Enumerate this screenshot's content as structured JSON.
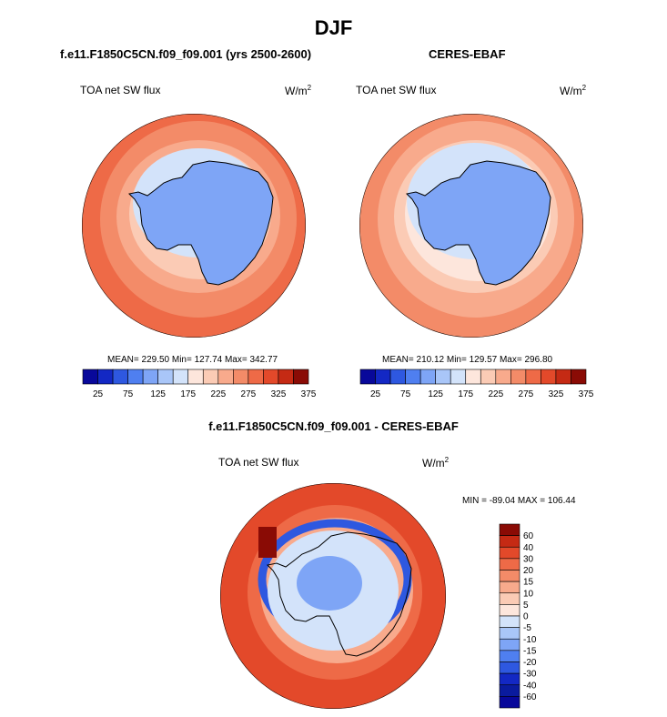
{
  "main_title": "DJF",
  "panels": [
    {
      "title": "f.e11.F1850C5CN.f09_f09.001 (yrs 2500-2600)",
      "variable": "TOA net SW flux",
      "units_base": "W/m",
      "units_exp": "2",
      "stats": "MEAN= 229.50  Min= 127.74  Max= 342.77"
    },
    {
      "title": "CERES-EBAF",
      "variable": "TOA net SW flux",
      "units_base": "W/m",
      "units_exp": "2",
      "stats": "MEAN= 210.12  Min= 129.57  Max= 296.80"
    },
    {
      "title": "f.e11.F1850C5CN.f09_f09.001 - CERES-EBAF",
      "variable": "TOA net SW flux",
      "units_base": "W/m",
      "units_exp": "2",
      "stats": "MIN = -89.04 MAX = 106.44"
    }
  ],
  "abs_colorbar": {
    "labels": [
      "25",
      "75",
      "125",
      "175",
      "225",
      "275",
      "325",
      "375"
    ],
    "colors": [
      "#08089a",
      "#1328c4",
      "#2e58e0",
      "#4f7ff0",
      "#7ea5f6",
      "#a9c6f8",
      "#d3e3fa",
      "#fde6dc",
      "#fbcbb5",
      "#f8aa8c",
      "#f38b68",
      "#ee6a47",
      "#e3492a",
      "#c52a14",
      "#8a0b05"
    ]
  },
  "diff_colorbar": {
    "labels": [
      "60",
      "40",
      "30",
      "20",
      "15",
      "10",
      "5",
      "0",
      "-5",
      "-10",
      "-15",
      "-20",
      "-30",
      "-40",
      "-60"
    ],
    "colors": [
      "#8a0b05",
      "#c52a14",
      "#e3492a",
      "#ee6a47",
      "#f38b68",
      "#f8aa8c",
      "#fbcbb5",
      "#fde6dc",
      "#d3e3fa",
      "#a9c6f8",
      "#7ea5f6",
      "#4f7ff0",
      "#2e58e0",
      "#1328c4",
      "#0a1b9e",
      "#08089a"
    ]
  },
  "map_colors": {
    "ocean_outer": "#ee6a47",
    "ocean_mid": "#f38b68",
    "ocean_inner": "#f8aa8c",
    "ocean_ice": "#fbcbb5",
    "sea_ice_edge": "#d3e3fa",
    "continent": "#7ea5f6",
    "diff_outer": "#e3492a",
    "diff_mid": "#ee6a47",
    "diff_inner": "#f8aa8c",
    "diff_blue": "#2e58e0",
    "diff_light": "#d3e3fa",
    "diff_dark": "#c52a14",
    "coast": "#000000"
  }
}
